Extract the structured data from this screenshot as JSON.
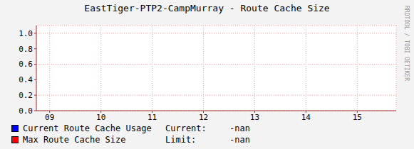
{
  "chart_data": {
    "type": "line",
    "title": "EastTiger-PTP2-CampMurray - Route Cache Size",
    "x": [
      9,
      10,
      11,
      12,
      13,
      14,
      15
    ],
    "xlim": [
      8.74,
      15.76
    ],
    "xticks": [
      {
        "value": 9,
        "label": "09"
      },
      {
        "value": 10,
        "label": "10"
      },
      {
        "value": 11,
        "label": "11"
      },
      {
        "value": 12,
        "label": "12"
      },
      {
        "value": 13,
        "label": "13"
      },
      {
        "value": 14,
        "label": "14"
      },
      {
        "value": 15,
        "label": "15"
      }
    ],
    "ylim": [
      0,
      1.1
    ],
    "yticks": [
      {
        "value": 0,
        "label": "0.0"
      },
      {
        "value": 0.2,
        "label": "0.2"
      },
      {
        "value": 0.4,
        "label": "0.4"
      },
      {
        "value": 0.6,
        "label": "0.6"
      },
      {
        "value": 0.8,
        "label": "0.8"
      },
      {
        "value": 1,
        "label": "1.0"
      }
    ],
    "grid": true,
    "series": [
      {
        "name": "Current Route Cache Usage",
        "color": "#0000ff",
        "values": [
          null,
          null,
          null,
          null,
          null,
          null,
          null
        ],
        "legend_text": "Current:",
        "legend_value": "-nan"
      },
      {
        "name": "Max Route Cache Size",
        "color": "#ff0000",
        "values": [
          null,
          null,
          null,
          null,
          null,
          null,
          null
        ],
        "legend_text": "Limit:",
        "legend_value": "-nan"
      }
    ],
    "watermark": "RRDTOOL / TOBI OETIKER"
  }
}
